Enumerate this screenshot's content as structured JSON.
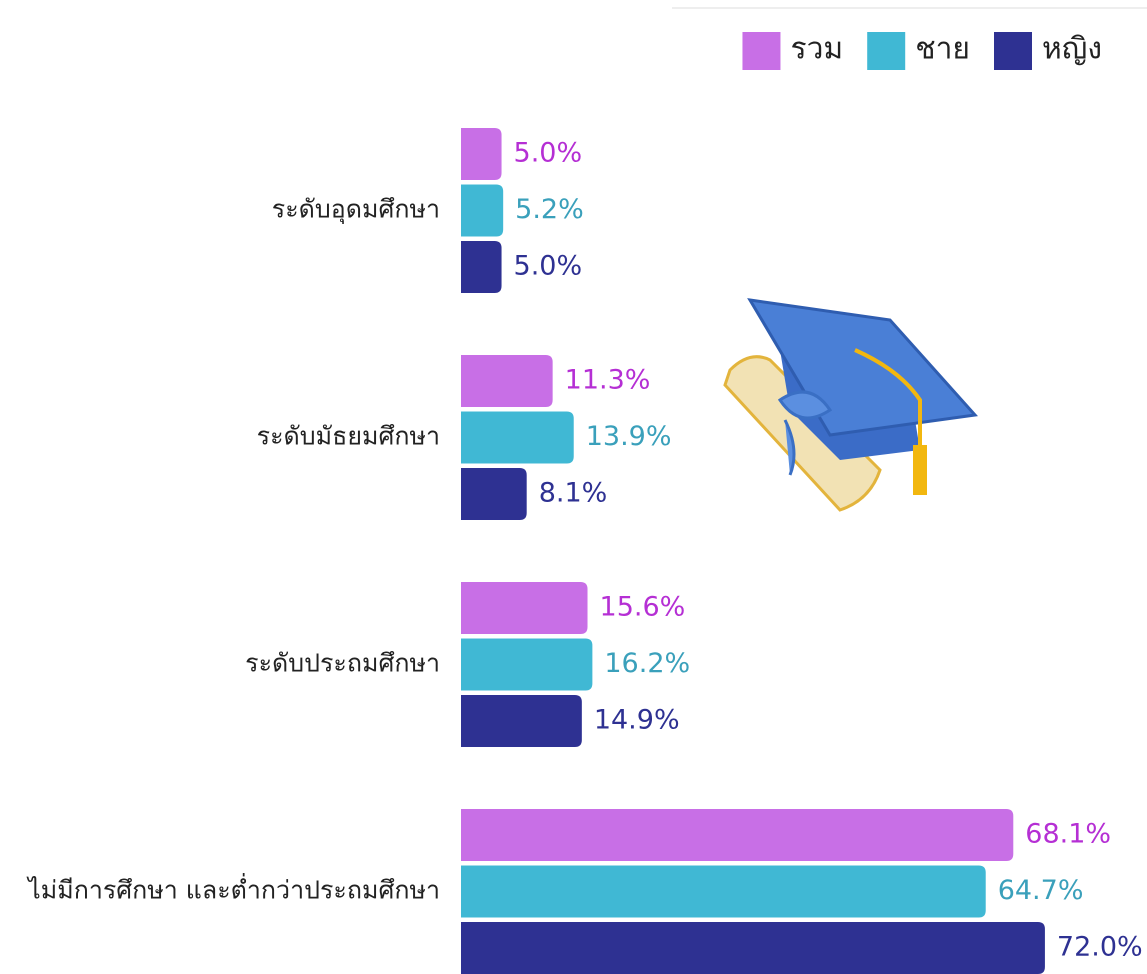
{
  "chart_data": {
    "type": "bar",
    "orientation": "horizontal",
    "legend": "top-right",
    "categories": [
      "ระดับอุดมศึกษา",
      "ระดับมัธยมศึกษา",
      "ระดับประถมศึกษา",
      "ไม่มีการศึกษา และต่ำกว่าประถมศึกษา"
    ],
    "series": [
      {
        "name": "รวม",
        "color": "#c86fe6",
        "label_color": "#b52fd4",
        "values": [
          5.0,
          11.3,
          15.6,
          68.1
        ],
        "value_labels": [
          "5.0%",
          "11.3%",
          "15.6%",
          "68.1%"
        ]
      },
      {
        "name": "ชาย",
        "color": "#40b8d4",
        "label_color": "#3aa0bb",
        "values": [
          5.2,
          13.9,
          16.2,
          64.7
        ],
        "value_labels": [
          "5.2%",
          "13.9%",
          "16.2%",
          "64.7%"
        ]
      },
      {
        "name": "หญิง",
        "color": "#2e3192",
        "label_color": "#2e3192",
        "values": [
          5.0,
          8.1,
          14.9,
          72.0
        ],
        "value_labels": [
          "5.0%",
          "8.1%",
          "14.9%",
          "72.0%"
        ]
      }
    ]
  }
}
